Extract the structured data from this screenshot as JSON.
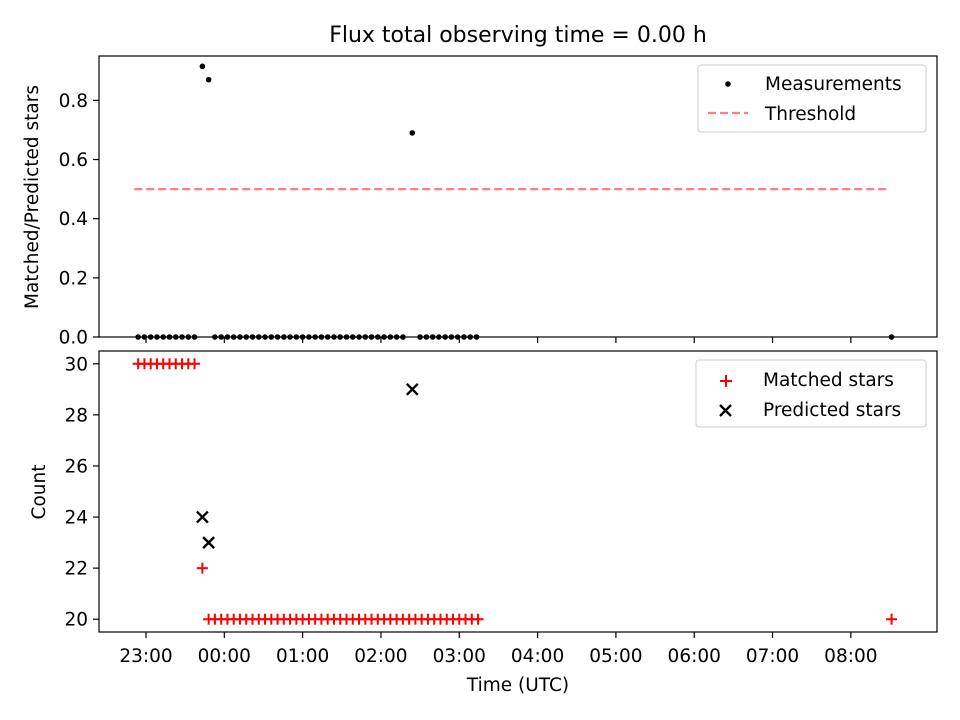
{
  "chart_data": {
    "title": "Flux total observing time = 0.00 h",
    "xlabel": "Time (UTC)",
    "x_unit": "hours since 00:00 UTC",
    "xlim": [
      -1.6,
      9.1
    ],
    "x_ticks": [
      {
        "value": -1,
        "label": "23:00"
      },
      {
        "value": 0,
        "label": "00:00"
      },
      {
        "value": 1,
        "label": "01:00"
      },
      {
        "value": 2,
        "label": "02:00"
      },
      {
        "value": 3,
        "label": "03:00"
      },
      {
        "value": 4,
        "label": "04:00"
      },
      {
        "value": 5,
        "label": "05:00"
      },
      {
        "value": 6,
        "label": "06:00"
      },
      {
        "value": 7,
        "label": "07:00"
      },
      {
        "value": 8,
        "label": "08:00"
      }
    ],
    "top": {
      "type": "scatter",
      "ylabel": "Matched/Predicted stars",
      "ylim": [
        0,
        0.95
      ],
      "y_ticks": [
        {
          "value": 0.0,
          "label": "0.0"
        },
        {
          "value": 0.2,
          "label": "0.2"
        },
        {
          "value": 0.4,
          "label": "0.4"
        },
        {
          "value": 0.6,
          "label": "0.6"
        },
        {
          "value": 0.8,
          "label": "0.8"
        }
      ],
      "legend": {
        "placement": "top-right",
        "measurements_label": "Measurements",
        "threshold_label": "Threshold"
      },
      "threshold": {
        "value": 0.5,
        "x_start": -1.15,
        "x_end": 8.5,
        "color": "#ff7f7f"
      },
      "measurements": [
        {
          "x": -1.1,
          "y": 0
        },
        {
          "x": -1.02,
          "y": 0
        },
        {
          "x": -0.94,
          "y": 0
        },
        {
          "x": -0.86,
          "y": 0
        },
        {
          "x": -0.78,
          "y": 0
        },
        {
          "x": -0.7,
          "y": 0
        },
        {
          "x": -0.62,
          "y": 0
        },
        {
          "x": -0.54,
          "y": 0
        },
        {
          "x": -0.46,
          "y": 0
        },
        {
          "x": -0.38,
          "y": 0
        },
        {
          "x": -0.28,
          "y": 0.915
        },
        {
          "x": -0.2,
          "y": 0.87
        },
        {
          "x": -0.12,
          "y": 0
        },
        {
          "x": -0.04,
          "y": 0
        },
        {
          "x": 0.04,
          "y": 0
        },
        {
          "x": 0.12,
          "y": 0
        },
        {
          "x": 0.2,
          "y": 0
        },
        {
          "x": 0.28,
          "y": 0
        },
        {
          "x": 0.36,
          "y": 0
        },
        {
          "x": 0.44,
          "y": 0
        },
        {
          "x": 0.52,
          "y": 0
        },
        {
          "x": 0.6,
          "y": 0
        },
        {
          "x": 0.68,
          "y": 0
        },
        {
          "x": 0.76,
          "y": 0
        },
        {
          "x": 0.84,
          "y": 0
        },
        {
          "x": 0.92,
          "y": 0
        },
        {
          "x": 1.0,
          "y": 0
        },
        {
          "x": 1.08,
          "y": 0
        },
        {
          "x": 1.16,
          "y": 0
        },
        {
          "x": 1.24,
          "y": 0
        },
        {
          "x": 1.32,
          "y": 0
        },
        {
          "x": 1.4,
          "y": 0
        },
        {
          "x": 1.48,
          "y": 0
        },
        {
          "x": 1.56,
          "y": 0
        },
        {
          "x": 1.64,
          "y": 0
        },
        {
          "x": 1.72,
          "y": 0
        },
        {
          "x": 1.8,
          "y": 0
        },
        {
          "x": 1.88,
          "y": 0
        },
        {
          "x": 1.96,
          "y": 0
        },
        {
          "x": 2.04,
          "y": 0
        },
        {
          "x": 2.12,
          "y": 0
        },
        {
          "x": 2.2,
          "y": 0
        },
        {
          "x": 2.28,
          "y": 0
        },
        {
          "x": 2.4,
          "y": 0.69
        },
        {
          "x": 2.5,
          "y": 0
        },
        {
          "x": 2.58,
          "y": 0
        },
        {
          "x": 2.66,
          "y": 0
        },
        {
          "x": 2.74,
          "y": 0
        },
        {
          "x": 2.82,
          "y": 0
        },
        {
          "x": 2.9,
          "y": 0
        },
        {
          "x": 2.98,
          "y": 0
        },
        {
          "x": 3.06,
          "y": 0
        },
        {
          "x": 3.14,
          "y": 0
        },
        {
          "x": 3.22,
          "y": 0
        },
        {
          "x": 8.52,
          "y": 0
        }
      ]
    },
    "bottom": {
      "type": "scatter",
      "ylabel": "Count",
      "ylim": [
        19.5,
        30.5
      ],
      "y_ticks": [
        {
          "value": 20,
          "label": "20"
        },
        {
          "value": 22,
          "label": "22"
        },
        {
          "value": 24,
          "label": "24"
        },
        {
          "value": 26,
          "label": "26"
        },
        {
          "value": 28,
          "label": "28"
        },
        {
          "value": 30,
          "label": "30"
        }
      ],
      "legend": {
        "placement": "top-right",
        "matched_label": "Matched stars",
        "predicted_label": "Predicted stars"
      },
      "matched_color": "#ff0000",
      "predicted_color": "#000000",
      "matched": [
        {
          "x": -1.1,
          "y": 30
        },
        {
          "x": -1.02,
          "y": 30
        },
        {
          "x": -0.94,
          "y": 30
        },
        {
          "x": -0.86,
          "y": 30
        },
        {
          "x": -0.78,
          "y": 30
        },
        {
          "x": -0.7,
          "y": 30
        },
        {
          "x": -0.62,
          "y": 30
        },
        {
          "x": -0.54,
          "y": 30
        },
        {
          "x": -0.46,
          "y": 30
        },
        {
          "x": -0.38,
          "y": 30
        },
        {
          "x": -0.28,
          "y": 22
        },
        {
          "x": -0.2,
          "y": 20
        },
        {
          "x": -0.12,
          "y": 20
        },
        {
          "x": -0.04,
          "y": 20
        },
        {
          "x": 0.04,
          "y": 20
        },
        {
          "x": 0.12,
          "y": 20
        },
        {
          "x": 0.2,
          "y": 20
        },
        {
          "x": 0.28,
          "y": 20
        },
        {
          "x": 0.36,
          "y": 20
        },
        {
          "x": 0.44,
          "y": 20
        },
        {
          "x": 0.52,
          "y": 20
        },
        {
          "x": 0.6,
          "y": 20
        },
        {
          "x": 0.68,
          "y": 20
        },
        {
          "x": 0.76,
          "y": 20
        },
        {
          "x": 0.84,
          "y": 20
        },
        {
          "x": 0.92,
          "y": 20
        },
        {
          "x": 1.0,
          "y": 20
        },
        {
          "x": 1.08,
          "y": 20
        },
        {
          "x": 1.16,
          "y": 20
        },
        {
          "x": 1.24,
          "y": 20
        },
        {
          "x": 1.32,
          "y": 20
        },
        {
          "x": 1.4,
          "y": 20
        },
        {
          "x": 1.48,
          "y": 20
        },
        {
          "x": 1.56,
          "y": 20
        },
        {
          "x": 1.64,
          "y": 20
        },
        {
          "x": 1.72,
          "y": 20
        },
        {
          "x": 1.8,
          "y": 20
        },
        {
          "x": 1.88,
          "y": 20
        },
        {
          "x": 1.96,
          "y": 20
        },
        {
          "x": 2.04,
          "y": 20
        },
        {
          "x": 2.12,
          "y": 20
        },
        {
          "x": 2.2,
          "y": 20
        },
        {
          "x": 2.28,
          "y": 20
        },
        {
          "x": 2.36,
          "y": 20
        },
        {
          "x": 2.44,
          "y": 20
        },
        {
          "x": 2.52,
          "y": 20
        },
        {
          "x": 2.6,
          "y": 20
        },
        {
          "x": 2.68,
          "y": 20
        },
        {
          "x": 2.76,
          "y": 20
        },
        {
          "x": 2.84,
          "y": 20
        },
        {
          "x": 2.92,
          "y": 20
        },
        {
          "x": 3.0,
          "y": 20
        },
        {
          "x": 3.08,
          "y": 20
        },
        {
          "x": 3.16,
          "y": 20
        },
        {
          "x": 3.24,
          "y": 20
        },
        {
          "x": 8.52,
          "y": 20
        }
      ],
      "predicted": [
        {
          "x": -0.28,
          "y": 24
        },
        {
          "x": -0.2,
          "y": 23
        },
        {
          "x": 2.4,
          "y": 29
        }
      ]
    }
  }
}
